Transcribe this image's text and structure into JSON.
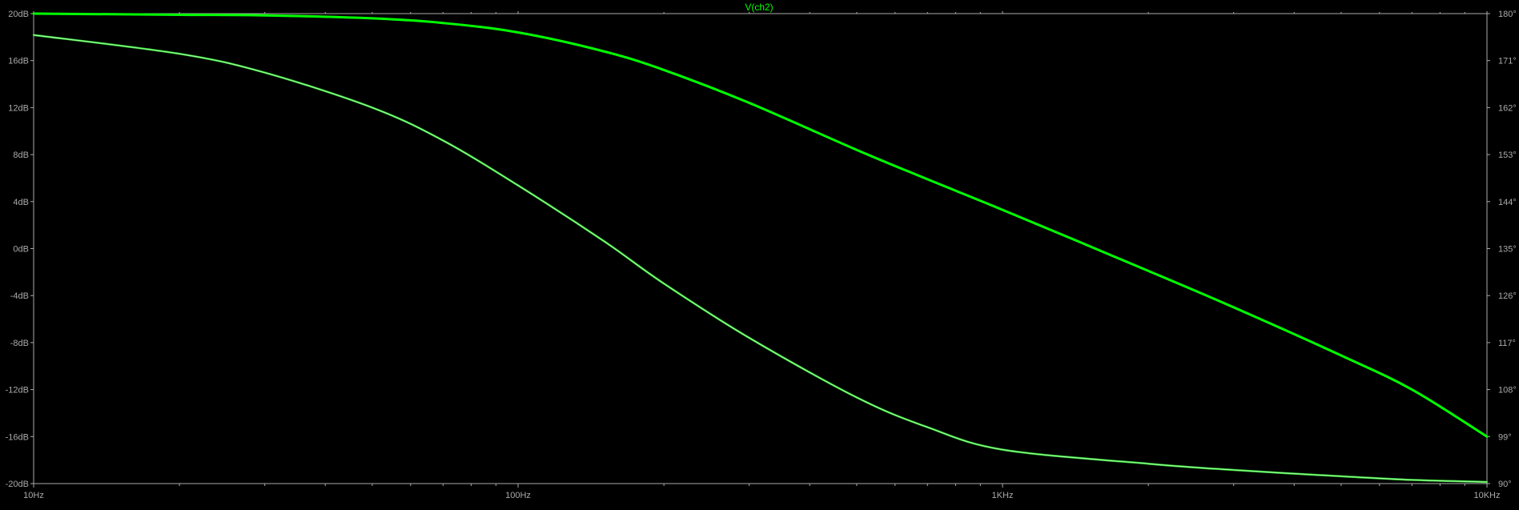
{
  "chart_data": {
    "type": "line",
    "title": "V(ch2)",
    "x_scale": "log",
    "x_range": [
      "10Hz",
      "10KHz"
    ],
    "x_tick_labels": [
      "10Hz",
      "100Hz",
      "1KHz",
      "10KHz"
    ],
    "y_left_label": "",
    "y_left_range": [
      -20,
      20
    ],
    "y_left_tick_labels": [
      "20dB",
      "16dB",
      "12dB",
      "8dB",
      "4dB",
      "0dB",
      "-4dB",
      "-8dB",
      "-12dB",
      "-16dB",
      "-20dB"
    ],
    "y_right_label": "",
    "y_right_range": [
      90,
      180
    ],
    "y_right_tick_labels": [
      "180°",
      "171°",
      "162°",
      "153°",
      "144°",
      "135°",
      "126°",
      "117°",
      "108°",
      "99°",
      "90°"
    ],
    "grid": false,
    "colors": {
      "trace": "#00ff00",
      "phase_trace": "#33dd33",
      "axis": "#aaaaaa",
      "title": "#00ff00",
      "background": "#000000"
    },
    "series": [
      {
        "axis": "left",
        "x": [
          "10Hz",
          "20Hz",
          "30Hz",
          "50Hz",
          "70Hz",
          "100Hz",
          "150Hz",
          "200Hz",
          "300Hz",
          "500Hz",
          "700Hz",
          "1KHz",
          "2KHz",
          "3KHz",
          "5KHz",
          "7KHz",
          "10KHz"
        ],
        "y": [
          20,
          19.9,
          19.85,
          19.6,
          19.2,
          18.4,
          16.8,
          15.2,
          12.4,
          8.4,
          5.9,
          3.3,
          -1.9,
          -5.0,
          -9.1,
          -12.0,
          -16.0
        ]
      },
      {
        "axis": "right",
        "x": [
          "10Hz",
          "20Hz",
          "30Hz",
          "50Hz",
          "70Hz",
          "100Hz",
          "150Hz",
          "200Hz",
          "300Hz",
          "500Hz",
          "700Hz",
          "1KHz",
          "2KHz",
          "3KHz",
          "5KHz",
          "7KHz",
          "10KHz"
        ],
        "y": [
          175.9,
          172.3,
          168.7,
          162.0,
          155.7,
          147.1,
          136.5,
          128.3,
          117.9,
          106.5,
          100.8,
          96.5,
          93.8,
          92.6,
          91.4,
          90.7,
          90.3
        ]
      }
    ]
  }
}
